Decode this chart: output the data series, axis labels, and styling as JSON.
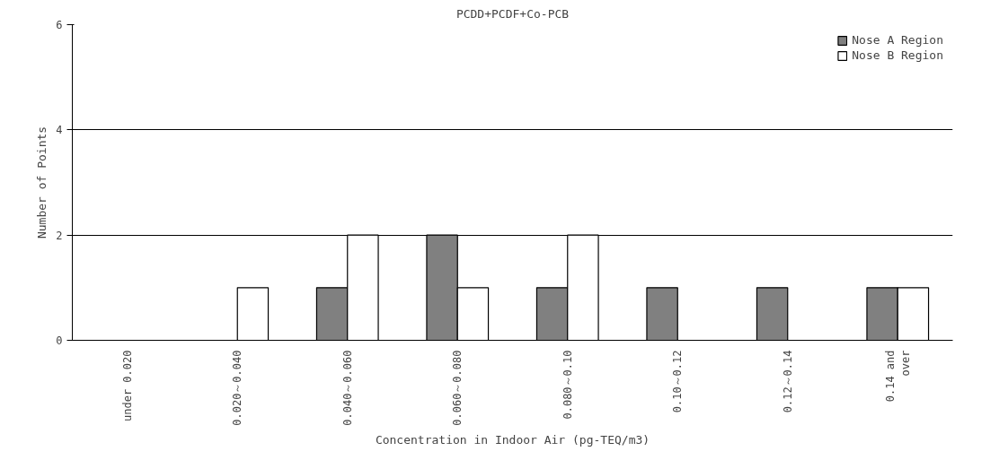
{
  "chart_data": {
    "type": "bar",
    "title": "PCDD+PCDF+Co-PCB",
    "xlabel": "Concentration in Indoor Air (pg-TEQ/m3)",
    "ylabel": "Number of Points",
    "categories": [
      "under 0.020",
      "0.020～0.040",
      "0.040～0.060",
      "0.060～0.080",
      "0.080～0.10",
      "0.10～0.12",
      "0.12～0.14",
      "0.14 and\nover"
    ],
    "series": [
      {
        "name": "Nose A Region",
        "color": "#808080",
        "values": [
          0,
          0,
          1,
          2,
          1,
          1,
          1,
          1
        ]
      },
      {
        "name": "Nose B Region",
        "color": "#ffffff",
        "values": [
          0,
          1,
          2,
          1,
          2,
          0,
          0,
          1
        ]
      }
    ],
    "ylim": [
      0,
      6
    ],
    "yticks": [
      0,
      2,
      4,
      6
    ],
    "grid": "y",
    "legend": "top right"
  }
}
